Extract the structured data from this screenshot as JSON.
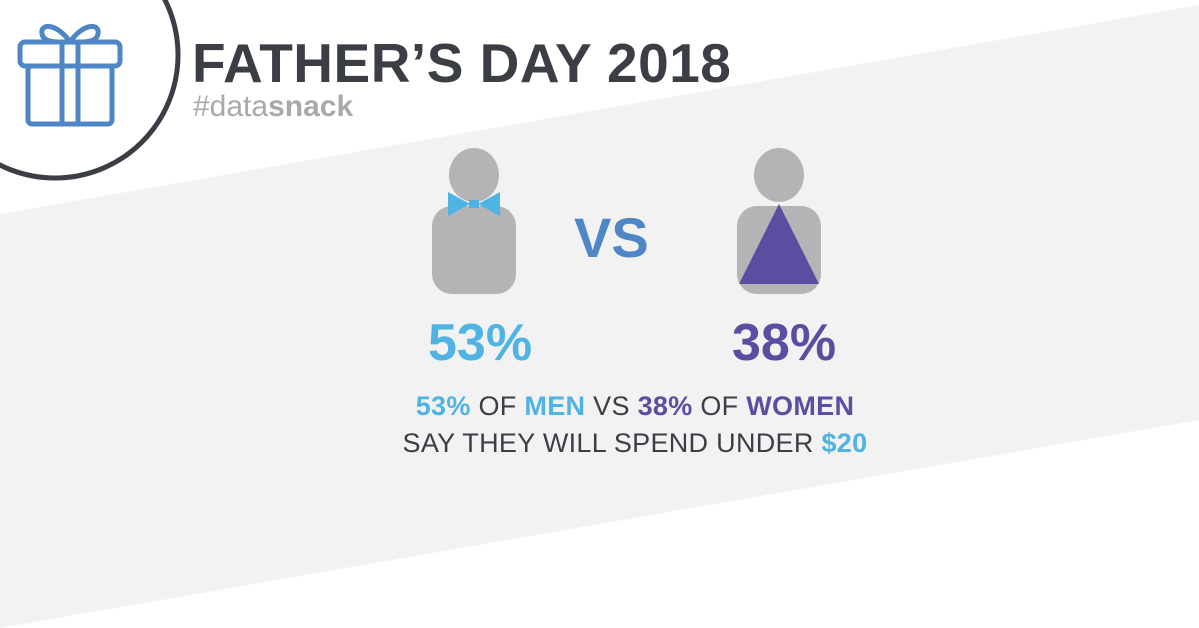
{
  "title": "FATHER’S DAY 2018",
  "hashtag": {
    "prefix": "#data",
    "suffix": "snack"
  },
  "icons": {
    "gift": "gift-icon",
    "man": "man-with-bowtie-icon",
    "woman": "woman-icon"
  },
  "comparison": {
    "vs_label": "VS",
    "men_percent": "53%",
    "women_percent": "38%"
  },
  "caption": {
    "line1": {
      "men_pct": "53%",
      "of1": "OF",
      "men": "MEN",
      "vs": "VS",
      "women_pct": "38%",
      "of2": "OF",
      "women": "WOMEN"
    },
    "line2": {
      "text": "SAY THEY WILL SPEND UNDER",
      "amount": "$20"
    }
  },
  "colors": {
    "title": "#3b3f45",
    "hashtag": "#a7a9ac",
    "men_blue": "#4fb3e4",
    "women_purple": "#5a4ea3",
    "vs_blue": "#4f86c6",
    "figure_gray": "#b3b4b6",
    "band_gray": "#f2f2f3"
  }
}
